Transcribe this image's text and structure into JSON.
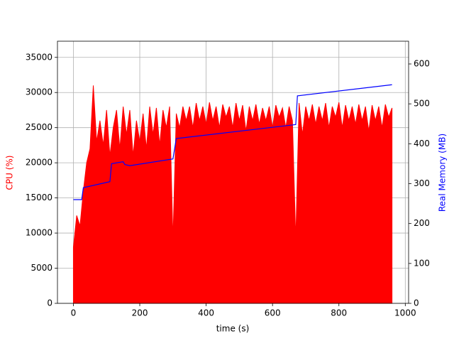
{
  "chart_data": {
    "type": "line",
    "x_label": "time (s)",
    "y_label": "CPU (%)",
    "y2_label": "Real Memory (MB)",
    "y_label_color": "#ff0000",
    "y2_label_color": "#0000ff",
    "xlim": [
      -48,
      1010
    ],
    "ylim": [
      0,
      37300
    ],
    "y2lim": [
      0,
      657
    ],
    "xticks": [
      0,
      200,
      400,
      600,
      800,
      1000
    ],
    "yticks": [
      0,
      5000,
      10000,
      15000,
      20000,
      25000,
      30000,
      35000
    ],
    "y2ticks": [
      0,
      100,
      200,
      300,
      400,
      500,
      600
    ],
    "grid": true,
    "series": [
      {
        "name": "CPU (%)",
        "color": "#ff0000",
        "fill": true,
        "x": [
          0,
          10,
          20,
          30,
          40,
          50,
          60,
          70,
          80,
          90,
          100,
          110,
          120,
          130,
          140,
          150,
          160,
          170,
          180,
          190,
          200,
          210,
          220,
          230,
          240,
          250,
          260,
          270,
          280,
          290,
          300,
          310,
          320,
          330,
          340,
          350,
          360,
          370,
          380,
          390,
          400,
          410,
          420,
          430,
          440,
          450,
          460,
          470,
          480,
          490,
          500,
          510,
          520,
          530,
          540,
          550,
          560,
          570,
          580,
          590,
          600,
          610,
          620,
          630,
          640,
          650,
          660,
          670,
          680,
          690,
          700,
          710,
          720,
          730,
          740,
          750,
          760,
          770,
          780,
          790,
          800,
          810,
          820,
          830,
          840,
          850,
          860,
          870,
          880,
          890,
          900,
          910,
          920,
          930,
          940,
          950,
          960
        ],
        "values": [
          8000,
          12500,
          11000,
          16000,
          20000,
          22000,
          31000,
          23000,
          26000,
          22500,
          27500,
          21000,
          25000,
          27500,
          22000,
          28000,
          24000,
          27500,
          21000,
          26000,
          23000,
          27000,
          22000,
          28000,
          24000,
          27800,
          22500,
          27500,
          25000,
          28000,
          9000,
          27000,
          25000,
          28000,
          26000,
          28000,
          25000,
          28500,
          26000,
          28000,
          25500,
          28600,
          26000,
          28000,
          25000,
          28300,
          26500,
          28000,
          25000,
          28500,
          26000,
          28200,
          24500,
          28000,
          26000,
          28300,
          25500,
          27800,
          26000,
          28000,
          25000,
          28200,
          26500,
          27800,
          25000,
          28000,
          26000,
          9000,
          28500,
          24000,
          28000,
          26000,
          28300,
          25500,
          28000,
          26000,
          28500,
          25000,
          28000,
          26500,
          28600,
          25000,
          28200,
          26000,
          28000,
          25500,
          28300,
          26000,
          28000,
          24500,
          28200,
          26000,
          28000,
          25000,
          28300,
          26500,
          27800
        ]
      },
      {
        "name": "Real Memory (MB)",
        "color": "#0000ff",
        "axis": "y2",
        "x": [
          0,
          25,
          30,
          110,
          115,
          150,
          155,
          170,
          300,
          310,
          670,
          675,
          960
        ],
        "values": [
          260,
          260,
          290,
          305,
          350,
          355,
          348,
          345,
          362,
          413,
          448,
          520,
          548
        ]
      }
    ]
  }
}
